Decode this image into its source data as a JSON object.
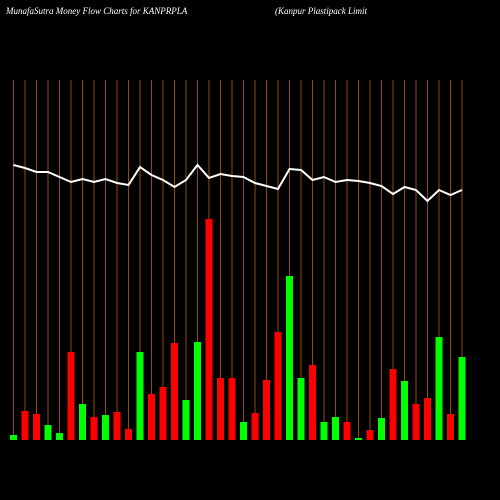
{
  "chart_data": {
    "type": "bar",
    "title": "MunafaSutra  Money Flow  Charts for KANPRPLA",
    "subtitle": "(Kanpur Plastipack Limit",
    "categories": [
      null,
      null,
      null,
      null,
      null,
      null,
      null,
      null,
      null,
      null,
      null,
      null,
      null,
      null,
      null,
      null,
      null,
      null,
      null,
      null,
      null,
      null,
      null,
      null,
      null,
      null,
      null,
      null,
      null,
      null,
      null,
      null,
      null,
      null,
      null,
      null,
      null,
      null,
      null,
      null
    ],
    "series": [
      {
        "type": "bar",
        "values": [
          5,
          29,
          26,
          15,
          7,
          88,
          36,
          23,
          25,
          28,
          11,
          88,
          46,
          53,
          97,
          40,
          98,
          221,
          62,
          62,
          18,
          27,
          60,
          108,
          164,
          62,
          75,
          18,
          23,
          18,
          2,
          10,
          22,
          71,
          59,
          36,
          42,
          103,
          26,
          83
        ],
        "colors": [
          "#00ff00",
          "#ff0000",
          "#ff0000",
          "#00ff00",
          "#00ff00",
          "#ff0000",
          "#00ff00",
          "#ff0000",
          "#00ff00",
          "#ff0000",
          "#ff0000",
          "#00ff00",
          "#ff0000",
          "#ff0000",
          "#ff0000",
          "#00ff00",
          "#00ff00",
          "#ff0000",
          "#ff0000",
          "#ff0000",
          "#00ff00",
          "#ff0000",
          "#ff0000",
          "#ff0000",
          "#00ff00",
          "#00ff00",
          "#ff0000",
          "#00ff00",
          "#00ff00",
          "#ff0000",
          "#00ff00",
          "#ff0000",
          "#00ff00",
          "#ff0000",
          "#00ff00",
          "#ff0000",
          "#ff0000",
          "#00ff00",
          "#ff0000",
          "#00ff00"
        ]
      },
      {
        "type": "line",
        "color": "#ffffff",
        "values": [
          275,
          272,
          268,
          268,
          263,
          258,
          261,
          258,
          261,
          257,
          255,
          273,
          265,
          260,
          253,
          260,
          275,
          262,
          266,
          264,
          263,
          257,
          254,
          251,
          271,
          270,
          260,
          263,
          258,
          260,
          259,
          257,
          254,
          246,
          253,
          250,
          239,
          250,
          245,
          250
        ]
      }
    ],
    "grid_color": "#b8600a"
  }
}
